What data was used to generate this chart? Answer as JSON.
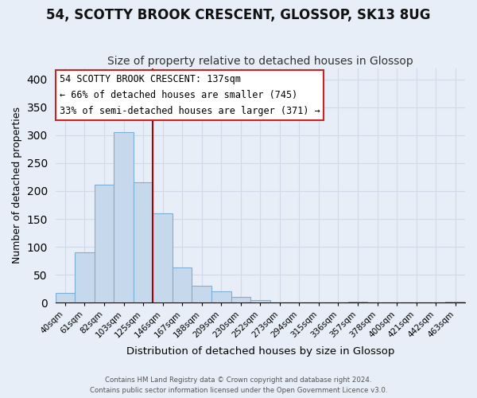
{
  "title": "54, SCOTTY BROOK CRESCENT, GLOSSOP, SK13 8UG",
  "subtitle": "Size of property relative to detached houses in Glossop",
  "xlabel": "Distribution of detached houses by size in Glossop",
  "ylabel": "Number of detached properties",
  "bin_labels": [
    "40sqm",
    "61sqm",
    "82sqm",
    "103sqm",
    "125sqm",
    "146sqm",
    "167sqm",
    "188sqm",
    "209sqm",
    "230sqm",
    "252sqm",
    "273sqm",
    "294sqm",
    "315sqm",
    "336sqm",
    "357sqm",
    "378sqm",
    "400sqm",
    "421sqm",
    "442sqm",
    "463sqm"
  ],
  "bar_heights": [
    17,
    90,
    211,
    305,
    215,
    160,
    63,
    31,
    20,
    10,
    4,
    1,
    0,
    0,
    0,
    2,
    0,
    0,
    0,
    0,
    2
  ],
  "bar_color": "#c6d9ec",
  "bar_edge_color": "#7bafd4",
  "vline_color": "#aa0000",
  "ylim": [
    0,
    420
  ],
  "yticks": [
    0,
    50,
    100,
    150,
    200,
    250,
    300,
    350,
    400
  ],
  "annotation_title": "54 SCOTTY BROOK CRESCENT: 137sqm",
  "annotation_line1": "← 66% of detached houses are smaller (745)",
  "annotation_line2": "33% of semi-detached houses are larger (371) →",
  "footnote1": "Contains HM Land Registry data © Crown copyright and database right 2024.",
  "footnote2": "Contains public sector information licensed under the Open Government Licence v3.0.",
  "background_color": "#e8eef7",
  "grid_color": "#d0dae8",
  "title_fontsize": 12,
  "subtitle_fontsize": 10
}
